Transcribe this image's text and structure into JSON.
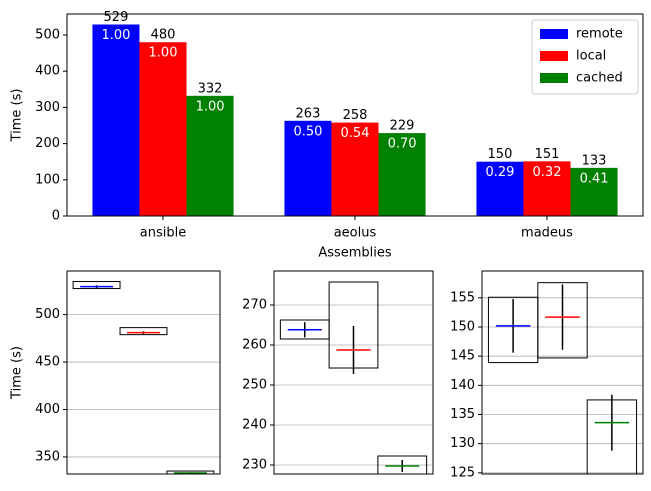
{
  "chart_data": [
    {
      "type": "bar",
      "xlabel": "Assemblies",
      "ylabel": "Time (s)",
      "categories": [
        "ansible",
        "aeolus",
        "madeus"
      ],
      "series": [
        {
          "name": "remote",
          "color": "#0000ff",
          "values": [
            529,
            263,
            150
          ],
          "ratios": [
            1.0,
            0.5,
            0.29
          ],
          "ratio_labels": [
            "1.00",
            "0.50",
            "0.29"
          ]
        },
        {
          "name": "local",
          "color": "#ff0000",
          "values": [
            480,
            258,
            151
          ],
          "ratios": [
            1.0,
            0.54,
            0.32
          ],
          "ratio_labels": [
            "1.00",
            "0.54",
            "0.32"
          ]
        },
        {
          "name": "cached",
          "color": "#008000",
          "values": [
            332,
            229,
            133
          ],
          "ratios": [
            1.0,
            0.7,
            0.41
          ],
          "ratio_labels": [
            "1.00",
            "0.70",
            "0.41"
          ]
        }
      ],
      "ylim": [
        0,
        558
      ],
      "yticks": [
        0,
        100,
        200,
        300,
        400,
        500
      ],
      "grid": false,
      "legend": "upper right"
    },
    {
      "type": "box",
      "ylabel": "Time (s)",
      "ylim": [
        332,
        546
      ],
      "yticks": [
        350,
        400,
        450,
        500
      ],
      "grid": true,
      "boxes": [
        {
          "color": "#0000ff",
          "low": 527.5,
          "high": 534.9,
          "mean": 529.5,
          "error": 1.5
        },
        {
          "color": "#ff0000",
          "low": 478.9,
          "high": 486.3,
          "mean": 481,
          "error": 1.5
        },
        {
          "color": "#008000",
          "low": 332,
          "high": 335.1,
          "mean": 333,
          "error": 0.8
        }
      ]
    },
    {
      "type": "box",
      "ylim": [
        227.75,
        278.5
      ],
      "yticks": [
        230,
        240,
        250,
        260,
        270
      ],
      "grid": true,
      "boxes": [
        {
          "color": "#0000ff",
          "low": 261.5,
          "high": 266.25,
          "mean": 263.8,
          "error": 1.9
        },
        {
          "color": "#ff0000",
          "low": 254.25,
          "high": 275.75,
          "mean": 258.75,
          "error": 6
        },
        {
          "color": "#008000",
          "low": 227.75,
          "high": 232.25,
          "mean": 229.75,
          "error": 1.5
        }
      ]
    },
    {
      "type": "box",
      "ylim": [
        124.8,
        159.6
      ],
      "yticks": [
        125,
        130,
        135,
        140,
        145,
        150,
        155
      ],
      "grid": true,
      "boxes": [
        {
          "color": "#0000ff",
          "low": 143.9,
          "high": 155.1,
          "mean": 150.2,
          "error": 4.6
        },
        {
          "color": "#ff0000",
          "low": 144.7,
          "high": 157.6,
          "mean": 151.7,
          "error": 5.6
        },
        {
          "color": "#008000",
          "low": 124.8,
          "high": 137.5,
          "mean": 133.6,
          "error": 4.8
        }
      ]
    }
  ]
}
